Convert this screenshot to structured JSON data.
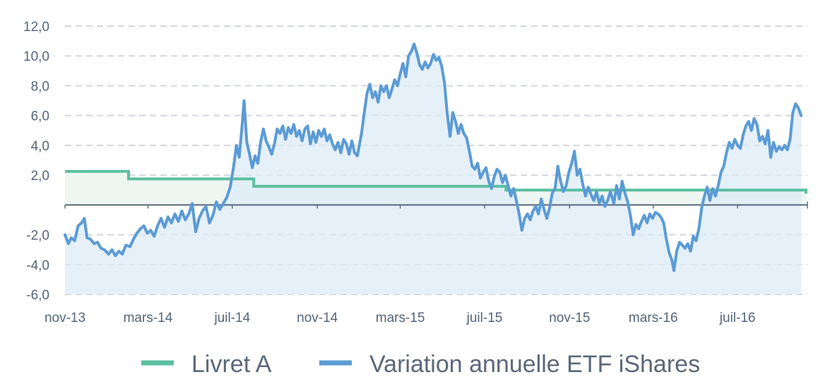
{
  "chart_data": {
    "type": "line",
    "title": "",
    "xlabel": "",
    "ylabel": "",
    "ylim": [
      -6,
      12
    ],
    "yticks": [
      12,
      10,
      8,
      6,
      4,
      2,
      0,
      -2,
      -4,
      -6
    ],
    "ytick_labels": [
      "12,0",
      "10,0",
      "8,0",
      "6,0",
      "4,0",
      "2,0",
      "",
      "-2,0",
      "-4,0",
      "-6,0"
    ],
    "x_range": [
      "2013-11-01",
      "2016-10-10"
    ],
    "x_ticks": [
      {
        "date": "2013-11-01",
        "label": "nov-13"
      },
      {
        "date": "2014-03-01",
        "label": "mars-14"
      },
      {
        "date": "2014-07-01",
        "label": "juil-14"
      },
      {
        "date": "2014-11-01",
        "label": "nov-14"
      },
      {
        "date": "2015-03-01",
        "label": "mars-15"
      },
      {
        "date": "2015-07-01",
        "label": "juil-15"
      },
      {
        "date": "2015-11-01",
        "label": "nov-15"
      },
      {
        "date": "2016-03-01",
        "label": "mars-16"
      },
      {
        "date": "2016-07-01",
        "label": "juil-16"
      }
    ],
    "grid": true,
    "legend_position": "bottom",
    "series": [
      {
        "name": "Livret A",
        "color": "#5bbf9f",
        "step": true,
        "points": [
          [
            "2013-11-01",
            2.25
          ],
          [
            "2014-02-01",
            2.25
          ],
          [
            "2014-02-01",
            1.75
          ],
          [
            "2014-08-01",
            1.75
          ],
          [
            "2014-08-01",
            1.25
          ],
          [
            "2015-08-01",
            1.25
          ],
          [
            "2015-08-01",
            1.0
          ],
          [
            "2016-10-08",
            1.0
          ],
          [
            "2016-10-08",
            0.75
          ]
        ]
      },
      {
        "name": "Variation annuelle ETF iShares",
        "color": "#5b9bd5",
        "points": [
          [
            "2013-11-01",
            -2.0
          ],
          [
            "2013-11-06",
            -2.6
          ],
          [
            "2013-11-10",
            -2.2
          ],
          [
            "2013-11-15",
            -2.4
          ],
          [
            "2013-11-20",
            -1.4
          ],
          [
            "2013-11-25",
            -1.2
          ],
          [
            "2013-11-29",
            -0.9
          ],
          [
            "2013-12-03",
            -2.2
          ],
          [
            "2013-12-08",
            -2.3
          ],
          [
            "2013-12-13",
            -2.6
          ],
          [
            "2013-12-18",
            -2.5
          ],
          [
            "2013-12-23",
            -2.9
          ],
          [
            "2013-12-28",
            -3.0
          ],
          [
            "2014-01-03",
            -3.3
          ],
          [
            "2014-01-08",
            -3.0
          ],
          [
            "2014-01-13",
            -3.4
          ],
          [
            "2014-01-18",
            -3.1
          ],
          [
            "2014-01-23",
            -3.3
          ],
          [
            "2014-01-28",
            -2.7
          ],
          [
            "2014-02-03",
            -2.8
          ],
          [
            "2014-02-08",
            -2.3
          ],
          [
            "2014-02-13",
            -1.9
          ],
          [
            "2014-02-18",
            -1.6
          ],
          [
            "2014-02-23",
            -1.4
          ],
          [
            "2014-02-28",
            -1.9
          ],
          [
            "2014-03-05",
            -1.7
          ],
          [
            "2014-03-10",
            -2.1
          ],
          [
            "2014-03-15",
            -1.4
          ],
          [
            "2014-03-20",
            -0.9
          ],
          [
            "2014-03-25",
            -1.5
          ],
          [
            "2014-03-30",
            -0.8
          ],
          [
            "2014-04-04",
            -1.2
          ],
          [
            "2014-04-09",
            -0.6
          ],
          [
            "2014-04-14",
            -1.1
          ],
          [
            "2014-04-19",
            -0.4
          ],
          [
            "2014-04-24",
            -1.0
          ],
          [
            "2014-04-29",
            -0.6
          ],
          [
            "2014-05-04",
            0.1
          ],
          [
            "2014-05-09",
            -1.8
          ],
          [
            "2014-05-14",
            -0.9
          ],
          [
            "2014-05-19",
            -0.4
          ],
          [
            "2014-05-24",
            -0.1
          ],
          [
            "2014-05-29",
            -1.2
          ],
          [
            "2014-06-03",
            -0.7
          ],
          [
            "2014-06-08",
            0.2
          ],
          [
            "2014-06-13",
            -0.3
          ],
          [
            "2014-06-18",
            0.1
          ],
          [
            "2014-06-23",
            0.5
          ],
          [
            "2014-06-28",
            1.2
          ],
          [
            "2014-07-03",
            2.6
          ],
          [
            "2014-07-07",
            4.0
          ],
          [
            "2014-07-11",
            3.2
          ],
          [
            "2014-07-15",
            5.2
          ],
          [
            "2014-07-18",
            7.0
          ],
          [
            "2014-07-22",
            4.2
          ],
          [
            "2014-07-26",
            3.4
          ],
          [
            "2014-07-30",
            2.5
          ],
          [
            "2014-08-03",
            3.3
          ],
          [
            "2014-08-07",
            2.8
          ],
          [
            "2014-08-11",
            4.2
          ],
          [
            "2014-08-15",
            5.1
          ],
          [
            "2014-08-19",
            4.3
          ],
          [
            "2014-08-23",
            3.9
          ],
          [
            "2014-08-27",
            3.4
          ],
          [
            "2014-08-31",
            4.1
          ],
          [
            "2014-09-04",
            5.1
          ],
          [
            "2014-09-08",
            4.8
          ],
          [
            "2014-09-12",
            5.3
          ],
          [
            "2014-09-16",
            4.4
          ],
          [
            "2014-09-20",
            5.2
          ],
          [
            "2014-09-24",
            4.8
          ],
          [
            "2014-09-28",
            5.4
          ],
          [
            "2014-10-02",
            4.6
          ],
          [
            "2014-10-06",
            5.0
          ],
          [
            "2014-10-10",
            4.3
          ],
          [
            "2014-10-14",
            5.1
          ],
          [
            "2014-10-18",
            5.3
          ],
          [
            "2014-10-22",
            4.1
          ],
          [
            "2014-10-26",
            4.9
          ],
          [
            "2014-10-30",
            4.2
          ],
          [
            "2014-11-03",
            5.0
          ],
          [
            "2014-11-07",
            4.6
          ],
          [
            "2014-11-11",
            5.1
          ],
          [
            "2014-11-15",
            4.3
          ],
          [
            "2014-11-19",
            4.7
          ],
          [
            "2014-11-23",
            4.1
          ],
          [
            "2014-11-27",
            3.7
          ],
          [
            "2014-12-01",
            4.2
          ],
          [
            "2014-12-05",
            3.5
          ],
          [
            "2014-12-09",
            4.4
          ],
          [
            "2014-12-13",
            4.1
          ],
          [
            "2014-12-17",
            3.4
          ],
          [
            "2014-12-21",
            4.3
          ],
          [
            "2014-12-25",
            3.5
          ],
          [
            "2014-12-29",
            3.3
          ],
          [
            "2015-01-04",
            4.8
          ],
          [
            "2015-01-08",
            6.2
          ],
          [
            "2015-01-12",
            7.5
          ],
          [
            "2015-01-16",
            8.1
          ],
          [
            "2015-01-20",
            7.2
          ],
          [
            "2015-01-24",
            7.6
          ],
          [
            "2015-01-28",
            6.9
          ],
          [
            "2015-02-01",
            8.0
          ],
          [
            "2015-02-05",
            7.6
          ],
          [
            "2015-02-09",
            8.0
          ],
          [
            "2015-02-13",
            7.2
          ],
          [
            "2015-02-17",
            7.8
          ],
          [
            "2015-02-21",
            8.4
          ],
          [
            "2015-02-25",
            8.0
          ],
          [
            "2015-03-01",
            8.8
          ],
          [
            "2015-03-05",
            9.5
          ],
          [
            "2015-03-09",
            8.6
          ],
          [
            "2015-03-13",
            10.0
          ],
          [
            "2015-03-17",
            10.3
          ],
          [
            "2015-03-21",
            10.8
          ],
          [
            "2015-03-25",
            10.2
          ],
          [
            "2015-03-29",
            9.4
          ],
          [
            "2015-04-02",
            9.1
          ],
          [
            "2015-04-06",
            9.6
          ],
          [
            "2015-04-10",
            9.2
          ],
          [
            "2015-04-14",
            9.5
          ],
          [
            "2015-04-18",
            10.1
          ],
          [
            "2015-04-22",
            9.7
          ],
          [
            "2015-04-26",
            9.9
          ],
          [
            "2015-04-30",
            9.3
          ],
          [
            "2015-05-04",
            8.2
          ],
          [
            "2015-05-08",
            6.1
          ],
          [
            "2015-05-12",
            4.6
          ],
          [
            "2015-05-16",
            6.2
          ],
          [
            "2015-05-20",
            5.6
          ],
          [
            "2015-05-24",
            4.8
          ],
          [
            "2015-05-28",
            5.4
          ],
          [
            "2015-06-01",
            4.8
          ],
          [
            "2015-06-05",
            4.5
          ],
          [
            "2015-06-09",
            3.6
          ],
          [
            "2015-06-13",
            2.6
          ],
          [
            "2015-06-17",
            2.4
          ],
          [
            "2015-06-21",
            2.8
          ],
          [
            "2015-06-25",
            1.8
          ],
          [
            "2015-06-29",
            2.2
          ],
          [
            "2015-07-03",
            2.5
          ],
          [
            "2015-07-07",
            1.6
          ],
          [
            "2015-07-11",
            1.1
          ],
          [
            "2015-07-15",
            1.9
          ],
          [
            "2015-07-19",
            2.4
          ],
          [
            "2015-07-23",
            2.2
          ],
          [
            "2015-07-27",
            1.5
          ],
          [
            "2015-07-31",
            2.0
          ],
          [
            "2015-08-04",
            1.3
          ],
          [
            "2015-08-08",
            0.6
          ],
          [
            "2015-08-12",
            1.1
          ],
          [
            "2015-08-16",
            0.3
          ],
          [
            "2015-08-20",
            -0.6
          ],
          [
            "2015-08-24",
            -1.7
          ],
          [
            "2015-08-28",
            -0.9
          ],
          [
            "2015-09-01",
            -0.6
          ],
          [
            "2015-09-05",
            -1.0
          ],
          [
            "2015-09-09",
            -0.4
          ],
          [
            "2015-09-13",
            -0.1
          ],
          [
            "2015-09-17",
            -0.6
          ],
          [
            "2015-09-21",
            0.4
          ],
          [
            "2015-09-25",
            -0.3
          ],
          [
            "2015-09-29",
            -0.9
          ],
          [
            "2015-10-03",
            -0.2
          ],
          [
            "2015-10-07",
            0.8
          ],
          [
            "2015-10-11",
            1.1
          ],
          [
            "2015-10-15",
            2.6
          ],
          [
            "2015-10-19",
            1.6
          ],
          [
            "2015-10-23",
            0.9
          ],
          [
            "2015-10-27",
            1.3
          ],
          [
            "2015-10-31",
            2.2
          ],
          [
            "2015-11-04",
            2.8
          ],
          [
            "2015-11-08",
            3.6
          ],
          [
            "2015-11-12",
            2.0
          ],
          [
            "2015-11-16",
            2.4
          ],
          [
            "2015-11-20",
            1.4
          ],
          [
            "2015-11-24",
            0.6
          ],
          [
            "2015-11-28",
            1.2
          ],
          [
            "2015-12-02",
            0.7
          ],
          [
            "2015-12-06",
            0.3
          ],
          [
            "2015-12-10",
            0.9
          ],
          [
            "2015-12-14",
            0.1
          ],
          [
            "2015-12-18",
            0.6
          ],
          [
            "2015-12-22",
            -0.1
          ],
          [
            "2015-12-26",
            0.3
          ],
          [
            "2015-12-30",
            0.9
          ],
          [
            "2016-01-04",
            0.1
          ],
          [
            "2016-01-08",
            1.3
          ],
          [
            "2016-01-12",
            0.4
          ],
          [
            "2016-01-16",
            1.6
          ],
          [
            "2016-01-20",
            0.8
          ],
          [
            "2016-01-24",
            0.2
          ],
          [
            "2016-01-28",
            -0.7
          ],
          [
            "2016-02-01",
            -2.0
          ],
          [
            "2016-02-05",
            -1.3
          ],
          [
            "2016-02-09",
            -1.6
          ],
          [
            "2016-02-13",
            -1.1
          ],
          [
            "2016-02-17",
            -0.7
          ],
          [
            "2016-02-21",
            -1.2
          ],
          [
            "2016-02-25",
            -0.6
          ],
          [
            "2016-02-29",
            -0.9
          ],
          [
            "2016-03-04",
            -0.5
          ],
          [
            "2016-03-08",
            -0.6
          ],
          [
            "2016-03-12",
            -0.8
          ],
          [
            "2016-03-16",
            -1.2
          ],
          [
            "2016-03-20",
            -2.3
          ],
          [
            "2016-03-24",
            -3.2
          ],
          [
            "2016-03-28",
            -3.7
          ],
          [
            "2016-03-31",
            -4.4
          ],
          [
            "2016-04-04",
            -3.1
          ],
          [
            "2016-04-08",
            -2.5
          ],
          [
            "2016-04-12",
            -2.7
          ],
          [
            "2016-04-16",
            -2.9
          ],
          [
            "2016-04-20",
            -2.6
          ],
          [
            "2016-04-24",
            -3.1
          ],
          [
            "2016-04-28",
            -2.1
          ],
          [
            "2016-05-02",
            -2.4
          ],
          [
            "2016-05-06",
            -1.6
          ],
          [
            "2016-05-10",
            -0.2
          ],
          [
            "2016-05-14",
            0.6
          ],
          [
            "2016-05-18",
            1.2
          ],
          [
            "2016-05-22",
            0.3
          ],
          [
            "2016-05-26",
            1.1
          ],
          [
            "2016-05-30",
            0.6
          ],
          [
            "2016-06-03",
            1.3
          ],
          [
            "2016-06-07",
            2.2
          ],
          [
            "2016-06-11",
            2.6
          ],
          [
            "2016-06-15",
            3.5
          ],
          [
            "2016-06-19",
            4.2
          ],
          [
            "2016-06-23",
            3.8
          ],
          [
            "2016-06-27",
            4.4
          ],
          [
            "2016-07-01",
            4.0
          ],
          [
            "2016-07-05",
            3.8
          ],
          [
            "2016-07-09",
            4.7
          ],
          [
            "2016-07-13",
            5.3
          ],
          [
            "2016-07-17",
            5.6
          ],
          [
            "2016-07-21",
            5.0
          ],
          [
            "2016-07-25",
            5.8
          ],
          [
            "2016-07-29",
            5.4
          ],
          [
            "2016-08-02",
            4.3
          ],
          [
            "2016-08-06",
            4.6
          ],
          [
            "2016-08-10",
            4.1
          ],
          [
            "2016-08-14",
            5.0
          ],
          [
            "2016-08-18",
            3.2
          ],
          [
            "2016-08-22",
            4.2
          ],
          [
            "2016-08-26",
            3.6
          ],
          [
            "2016-08-30",
            3.9
          ],
          [
            "2016-09-03",
            3.7
          ],
          [
            "2016-09-07",
            4.0
          ],
          [
            "2016-09-11",
            3.7
          ],
          [
            "2016-09-15",
            4.4
          ],
          [
            "2016-09-19",
            6.2
          ],
          [
            "2016-09-23",
            6.8
          ],
          [
            "2016-09-27",
            6.5
          ],
          [
            "2016-10-01",
            6.0
          ]
        ]
      }
    ]
  },
  "legend": {
    "items": [
      {
        "label": "Livret A",
        "color": "#5bbf9f"
      },
      {
        "label": "Variation annuelle ETF iShares",
        "color": "#5b9bd5"
      }
    ]
  }
}
